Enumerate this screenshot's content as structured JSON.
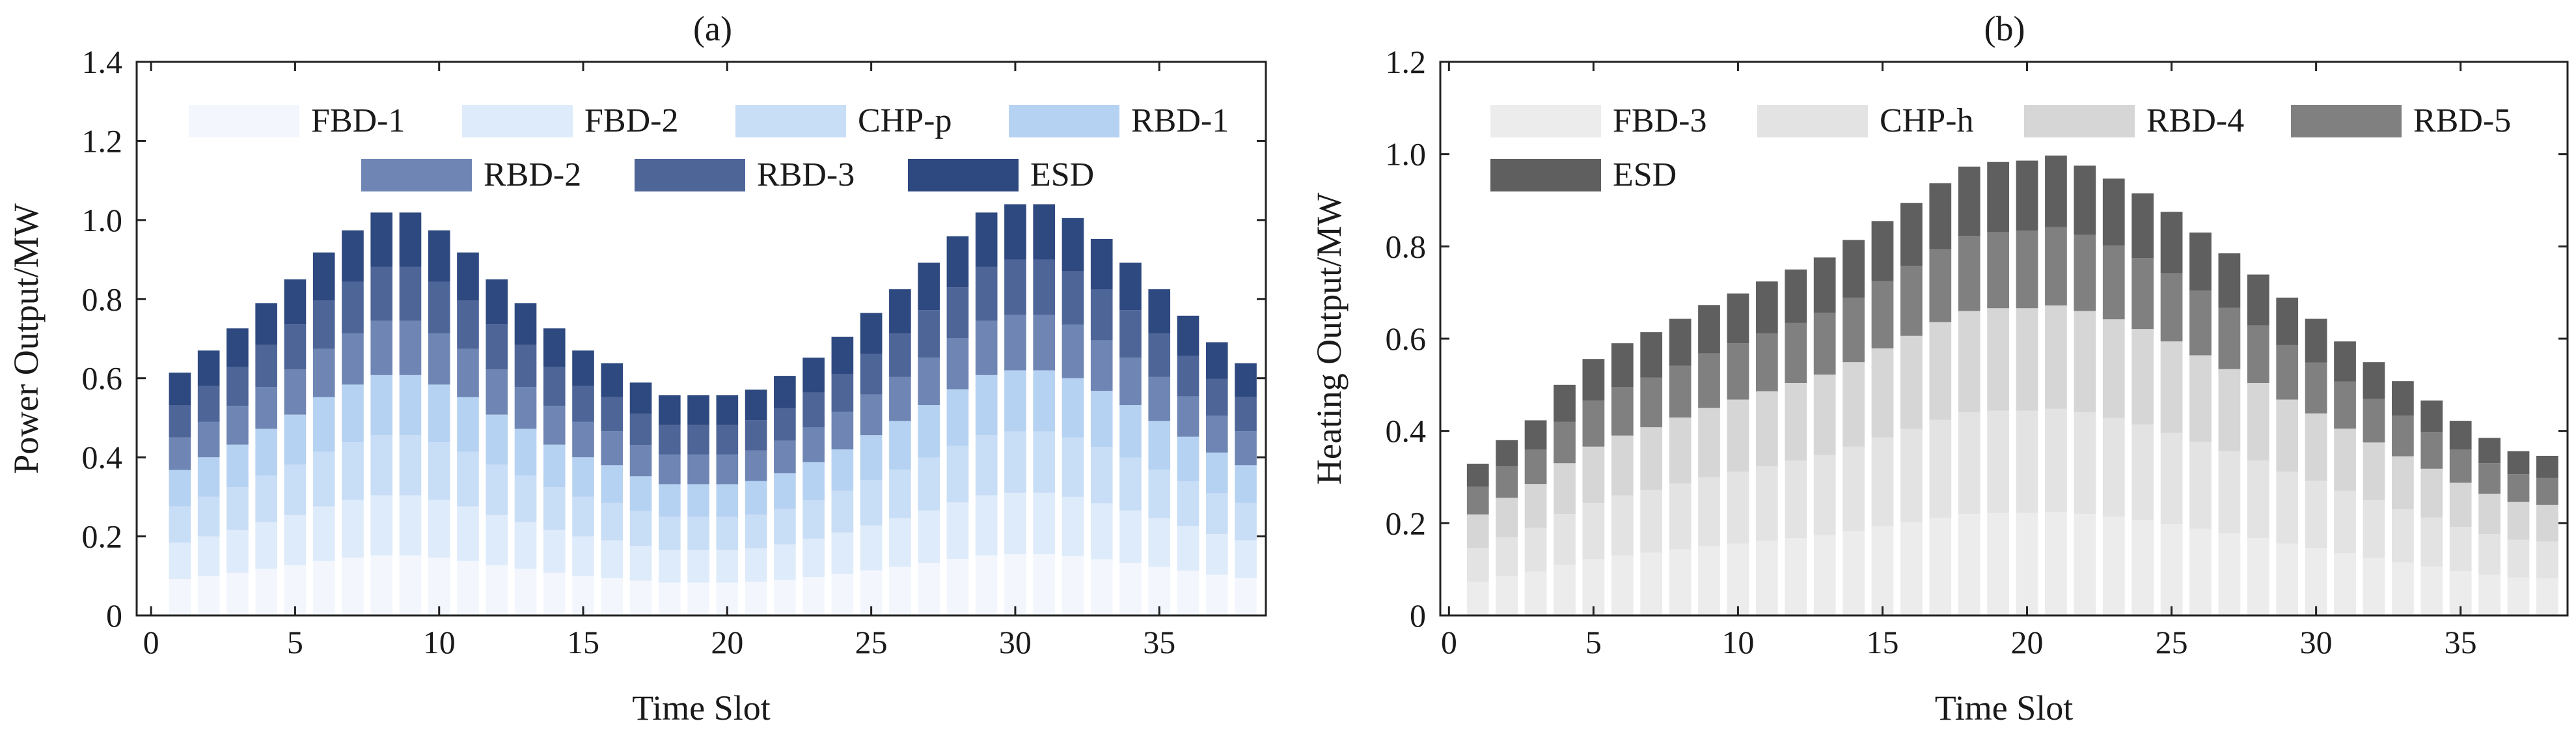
{
  "chart_data": [
    {
      "type": "bar",
      "stacked": true,
      "title": "(a)",
      "xlabel": "Time Slot",
      "ylabel": "Power Output/MW",
      "xlim": [
        -0.5,
        38.7
      ],
      "ylim": [
        0,
        1.4
      ],
      "xticks": [
        0,
        5,
        10,
        15,
        20,
        25,
        30,
        35
      ],
      "xtick_labels": [
        "0",
        "5",
        "10",
        "15",
        "20",
        "25",
        "30",
        "35"
      ],
      "yticks": [
        0,
        0.2,
        0.4,
        0.6,
        0.8,
        1.0,
        1.2,
        1.4
      ],
      "ytick_labels": [
        "0",
        "0.2",
        "0.4",
        "0.6",
        "0.8",
        "1.0",
        "1.2",
        "1.4"
      ],
      "legend_position": "top",
      "categories": [
        1,
        2,
        3,
        4,
        5,
        6,
        7,
        8,
        9,
        10,
        11,
        12,
        13,
        14,
        15,
        16,
        17,
        18,
        19,
        20,
        21,
        22,
        23,
        24,
        25,
        26,
        27,
        28,
        29,
        30,
        31,
        32,
        33,
        34,
        35,
        36,
        37,
        38
      ],
      "series": [
        {
          "name": "FBD-1",
          "color": "#f3f7fd",
          "values": [
            0.092,
            0.1,
            0.108,
            0.118,
            0.127,
            0.138,
            0.146,
            0.152,
            0.152,
            0.146,
            0.138,
            0.127,
            0.118,
            0.108,
            0.1,
            0.095,
            0.088,
            0.083,
            0.083,
            0.083,
            0.085,
            0.09,
            0.097,
            0.105,
            0.114,
            0.123,
            0.133,
            0.143,
            0.152,
            0.155,
            0.155,
            0.15,
            0.142,
            0.133,
            0.123,
            0.113,
            0.103,
            0.095
          ]
        },
        {
          "name": "FBD-2",
          "color": "#deebfa",
          "values": [
            0.092,
            0.1,
            0.108,
            0.118,
            0.127,
            0.138,
            0.146,
            0.152,
            0.152,
            0.146,
            0.138,
            0.127,
            0.118,
            0.108,
            0.1,
            0.095,
            0.088,
            0.083,
            0.083,
            0.083,
            0.085,
            0.09,
            0.097,
            0.105,
            0.114,
            0.123,
            0.133,
            0.143,
            0.152,
            0.155,
            0.155,
            0.15,
            0.142,
            0.133,
            0.123,
            0.113,
            0.103,
            0.095
          ]
        },
        {
          "name": "CHP-p",
          "color": "#c8ddf6",
          "values": [
            0.092,
            0.1,
            0.108,
            0.118,
            0.127,
            0.138,
            0.146,
            0.152,
            0.152,
            0.146,
            0.138,
            0.127,
            0.118,
            0.108,
            0.1,
            0.095,
            0.088,
            0.083,
            0.083,
            0.083,
            0.085,
            0.09,
            0.097,
            0.105,
            0.114,
            0.123,
            0.133,
            0.143,
            0.152,
            0.155,
            0.155,
            0.15,
            0.142,
            0.133,
            0.123,
            0.113,
            0.103,
            0.095
          ]
        },
        {
          "name": "RBD-1",
          "color": "#b6d2f2",
          "values": [
            0.092,
            0.1,
            0.108,
            0.118,
            0.127,
            0.138,
            0.146,
            0.152,
            0.152,
            0.146,
            0.138,
            0.127,
            0.118,
            0.108,
            0.1,
            0.095,
            0.088,
            0.083,
            0.083,
            0.083,
            0.085,
            0.09,
            0.097,
            0.105,
            0.114,
            0.123,
            0.133,
            0.143,
            0.152,
            0.155,
            0.155,
            0.15,
            0.142,
            0.133,
            0.123,
            0.113,
            0.103,
            0.095
          ]
        },
        {
          "name": "RBD-2",
          "color": "#6f86b4",
          "values": [
            0.082,
            0.09,
            0.098,
            0.106,
            0.114,
            0.122,
            0.13,
            0.137,
            0.137,
            0.13,
            0.122,
            0.114,
            0.106,
            0.098,
            0.09,
            0.086,
            0.079,
            0.075,
            0.075,
            0.075,
            0.077,
            0.082,
            0.088,
            0.095,
            0.103,
            0.111,
            0.12,
            0.129,
            0.137,
            0.14,
            0.14,
            0.135,
            0.128,
            0.12,
            0.111,
            0.102,
            0.093,
            0.086
          ]
        },
        {
          "name": "RBD-3",
          "color": "#4e6598",
          "values": [
            0.082,
            0.09,
            0.098,
            0.106,
            0.114,
            0.122,
            0.13,
            0.137,
            0.137,
            0.13,
            0.122,
            0.114,
            0.106,
            0.098,
            0.09,
            0.086,
            0.079,
            0.075,
            0.075,
            0.075,
            0.077,
            0.082,
            0.088,
            0.095,
            0.103,
            0.111,
            0.12,
            0.129,
            0.137,
            0.14,
            0.14,
            0.135,
            0.128,
            0.12,
            0.111,
            0.102,
            0.093,
            0.086
          ]
        },
        {
          "name": "ESD",
          "color": "#2e4980",
          "values": [
            0.082,
            0.09,
            0.098,
            0.106,
            0.114,
            0.122,
            0.13,
            0.137,
            0.137,
            0.13,
            0.122,
            0.114,
            0.106,
            0.098,
            0.09,
            0.086,
            0.079,
            0.075,
            0.075,
            0.075,
            0.077,
            0.082,
            0.088,
            0.095,
            0.103,
            0.111,
            0.12,
            0.129,
            0.137,
            0.14,
            0.14,
            0.135,
            0.128,
            0.12,
            0.111,
            0.102,
            0.093,
            0.086
          ]
        }
      ]
    },
    {
      "type": "bar",
      "stacked": true,
      "title": "(b)",
      "xlabel": "Time Slot",
      "ylabel": "Heating Output/MW",
      "xlim": [
        -0.3,
        38.7
      ],
      "ylim": [
        0,
        1.2
      ],
      "xticks": [
        0,
        5,
        10,
        15,
        20,
        25,
        30,
        35
      ],
      "xtick_labels": [
        "0",
        "5",
        "10",
        "15",
        "20",
        "25",
        "30",
        "35"
      ],
      "yticks": [
        0,
        0.2,
        0.4,
        0.6,
        0.8,
        1.0,
        1.2
      ],
      "ytick_labels": [
        "0",
        "0.2",
        "0.4",
        "0.6",
        "0.8",
        "1.0",
        "1.2"
      ],
      "legend_position": "top-left",
      "categories": [
        1,
        2,
        3,
        4,
        5,
        6,
        7,
        8,
        9,
        10,
        11,
        12,
        13,
        14,
        15,
        16,
        17,
        18,
        19,
        20,
        21,
        22,
        23,
        24,
        25,
        26,
        27,
        28,
        29,
        30,
        31,
        32,
        33,
        34,
        35,
        36,
        37,
        38
      ],
      "series": [
        {
          "name": "FBD-3",
          "color": "#ececec",
          "values": [
            0.073,
            0.085,
            0.095,
            0.11,
            0.122,
            0.13,
            0.136,
            0.143,
            0.15,
            0.156,
            0.162,
            0.168,
            0.174,
            0.183,
            0.193,
            0.202,
            0.212,
            0.22,
            0.222,
            0.222,
            0.224,
            0.22,
            0.214,
            0.207,
            0.198,
            0.188,
            0.178,
            0.168,
            0.156,
            0.146,
            0.135,
            0.125,
            0.115,
            0.106,
            0.096,
            0.088,
            0.082,
            0.08
          ]
        },
        {
          "name": "CHP-h",
          "color": "#e3e3e3",
          "values": [
            0.073,
            0.085,
            0.095,
            0.11,
            0.122,
            0.13,
            0.136,
            0.143,
            0.15,
            0.156,
            0.162,
            0.168,
            0.174,
            0.183,
            0.193,
            0.202,
            0.212,
            0.22,
            0.222,
            0.222,
            0.224,
            0.22,
            0.214,
            0.207,
            0.198,
            0.188,
            0.178,
            0.168,
            0.156,
            0.146,
            0.135,
            0.125,
            0.115,
            0.106,
            0.096,
            0.088,
            0.082,
            0.08
          ]
        },
        {
          "name": "RBD-4",
          "color": "#d6d6d6",
          "values": [
            0.073,
            0.085,
            0.095,
            0.11,
            0.122,
            0.13,
            0.136,
            0.143,
            0.15,
            0.156,
            0.162,
            0.168,
            0.174,
            0.183,
            0.193,
            0.202,
            0.212,
            0.22,
            0.222,
            0.222,
            0.224,
            0.22,
            0.214,
            0.207,
            0.198,
            0.188,
            0.178,
            0.168,
            0.156,
            0.146,
            0.135,
            0.125,
            0.115,
            0.106,
            0.096,
            0.088,
            0.082,
            0.08
          ]
        },
        {
          "name": "RBD-5",
          "color": "#808080",
          "values": [
            0.06,
            0.068,
            0.075,
            0.09,
            0.1,
            0.105,
            0.108,
            0.112,
            0.118,
            0.122,
            0.126,
            0.13,
            0.134,
            0.14,
            0.146,
            0.152,
            0.158,
            0.163,
            0.165,
            0.168,
            0.17,
            0.165,
            0.16,
            0.154,
            0.148,
            0.14,
            0.133,
            0.125,
            0.118,
            0.11,
            0.102,
            0.094,
            0.088,
            0.08,
            0.072,
            0.066,
            0.06,
            0.058
          ]
        },
        {
          "name": "ESD",
          "color": "#5f5f5f",
          "values": [
            0.05,
            0.057,
            0.063,
            0.08,
            0.09,
            0.095,
            0.098,
            0.102,
            0.105,
            0.108,
            0.112,
            0.116,
            0.12,
            0.125,
            0.13,
            0.136,
            0.143,
            0.15,
            0.152,
            0.152,
            0.155,
            0.15,
            0.145,
            0.14,
            0.133,
            0.126,
            0.118,
            0.11,
            0.103,
            0.095,
            0.087,
            0.08,
            0.075,
            0.068,
            0.062,
            0.055,
            0.05,
            0.048
          ]
        }
      ]
    }
  ]
}
